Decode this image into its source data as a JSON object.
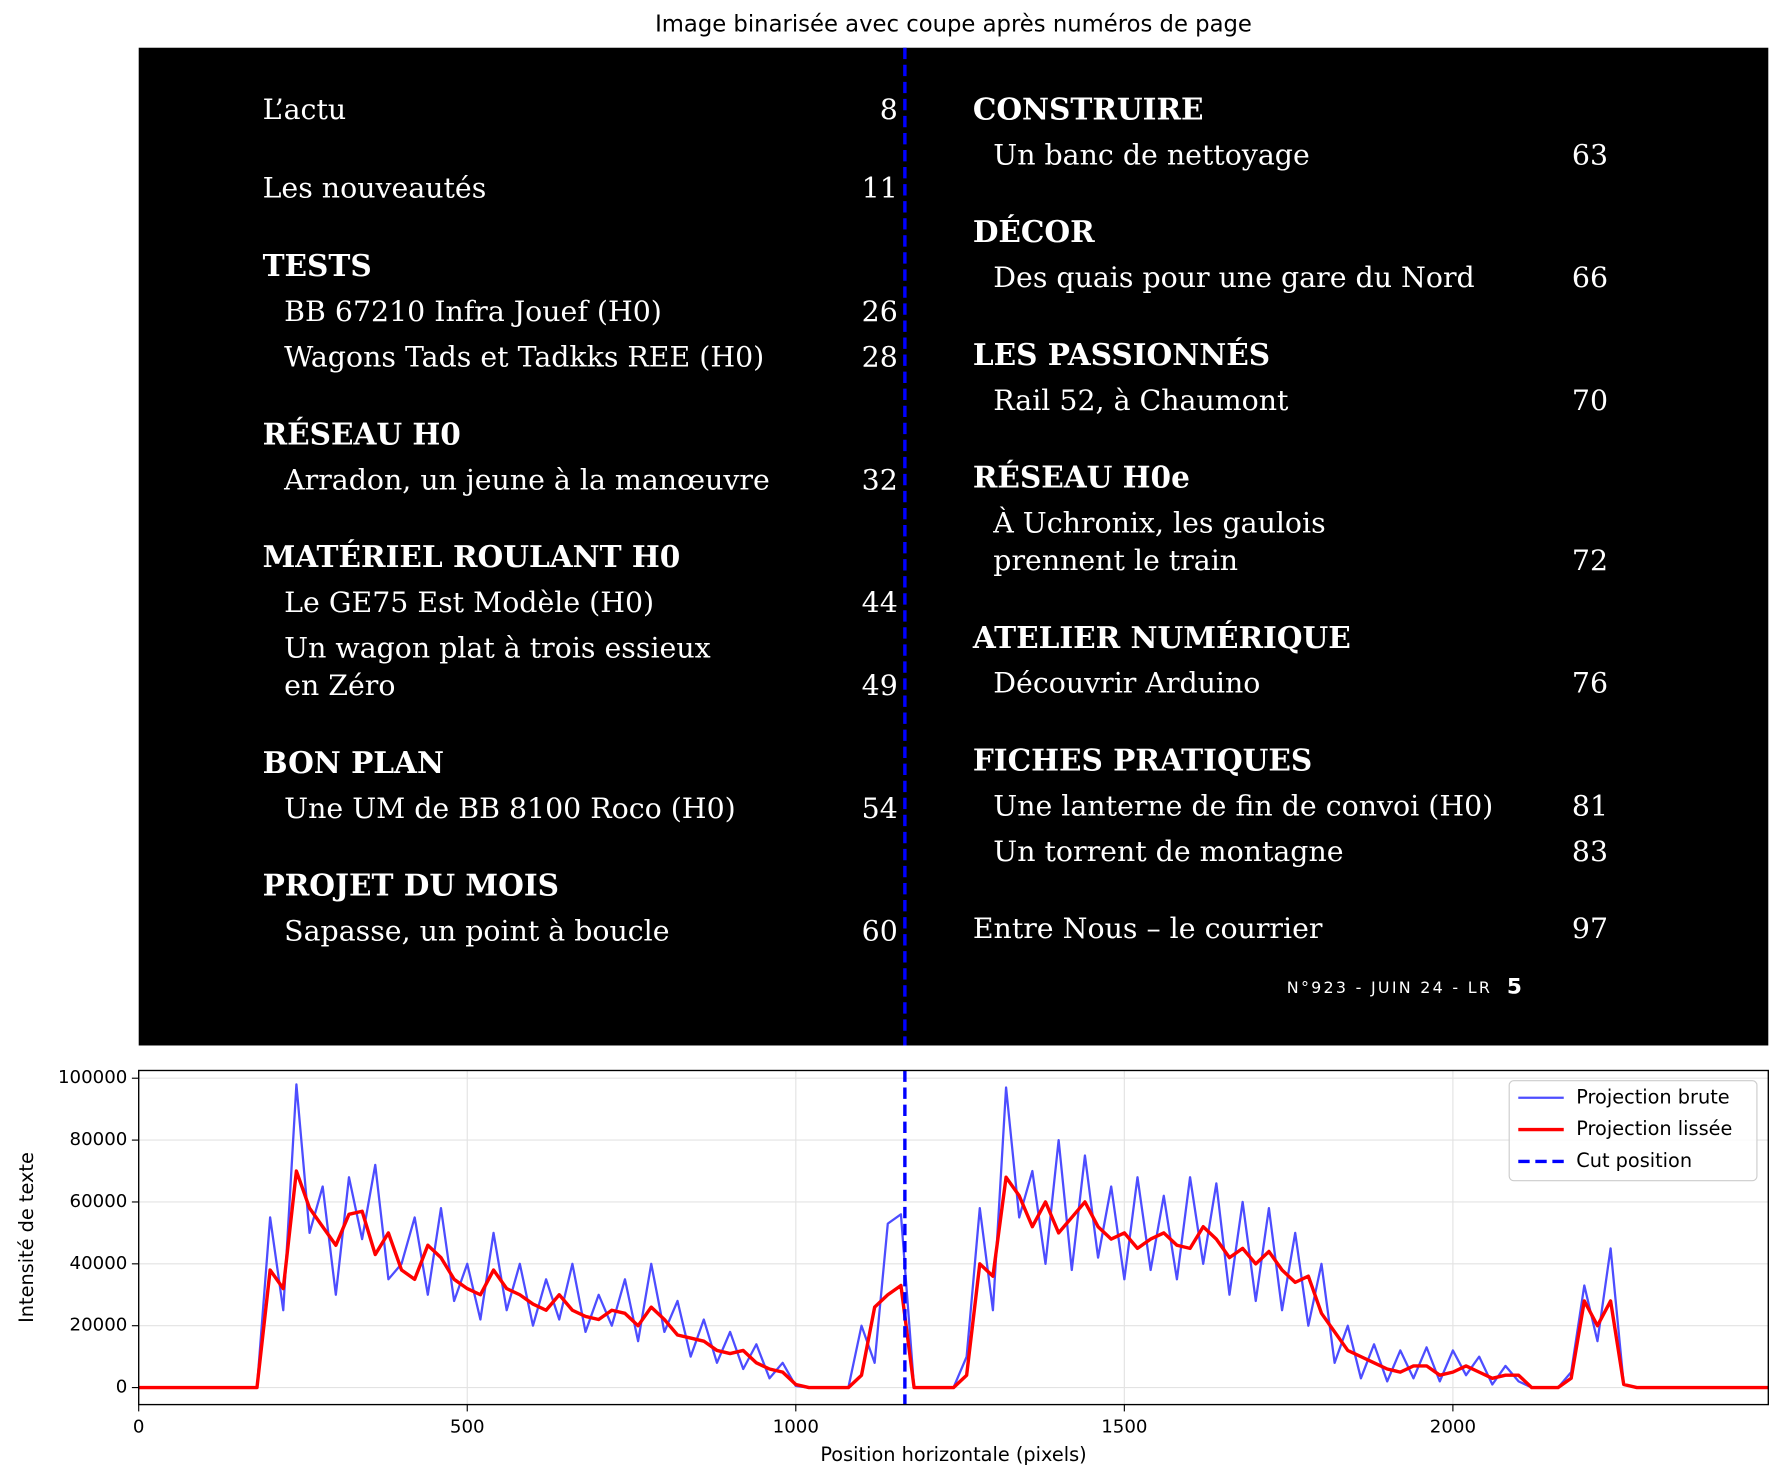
{
  "chart_data": [
    {
      "type": "image",
      "title": "Image binarisée avec coupe après numéros de page",
      "columns": [
        [
          {
            "entry": "L’actu",
            "page": 8
          },
          {
            "entry": "Les nouveautés",
            "page": 11
          },
          {
            "heading": "TESTS",
            "items": [
              {
                "lines": [
                  "BB 67210 Infra Jouef (H0)"
                ],
                "page": 26
              },
              {
                "lines": [
                  "Wagons Tads et Tadkks REE (H0)"
                ],
                "page": 28
              }
            ]
          },
          {
            "heading": "RÉSEAU H0",
            "items": [
              {
                "lines": [
                  "Arradon, un jeune à la manœuvre"
                ],
                "page": 32
              }
            ]
          },
          {
            "heading": "MATÉRIEL ROULANT H0",
            "items": [
              {
                "lines": [
                  "Le GE75 Est Modèle (H0)"
                ],
                "page": 44
              },
              {
                "lines": [
                  "Un wagon plat à trois essieux",
                  "en Zéro"
                ],
                "page": 49
              }
            ]
          },
          {
            "heading": "BON PLAN",
            "items": [
              {
                "lines": [
                  "Une UM de BB 8100 Roco (H0)"
                ],
                "page": 54
              }
            ]
          },
          {
            "heading": "PROJET DU MOIS",
            "items": [
              {
                "lines": [
                  "Sapasse, un point à boucle"
                ],
                "page": 60
              }
            ]
          }
        ],
        [
          {
            "heading": "CONSTRUIRE",
            "items": [
              {
                "lines": [
                  "Un banc de nettoyage"
                ],
                "page": 63
              }
            ]
          },
          {
            "heading": "DÉCOR",
            "items": [
              {
                "lines": [
                  "Des quais pour une gare du Nord"
                ],
                "page": 66
              }
            ]
          },
          {
            "heading": "LES PASSIONNÉS",
            "items": [
              {
                "lines": [
                  "Rail 52, à Chaumont"
                ],
                "page": 70
              }
            ]
          },
          {
            "heading": "RÉSEAU H0e",
            "items": [
              {
                "lines": [
                  "À Uchronix, les gaulois",
                  "prennent le train"
                ],
                "page": 72
              }
            ]
          },
          {
            "heading": "ATELIER NUMÉRIQUE",
            "items": [
              {
                "lines": [
                  "Découvrir Arduino"
                ],
                "page": 76
              }
            ]
          },
          {
            "heading": "FICHES PRATIQUES",
            "items": [
              {
                "lines": [
                  "Une lanterne de fin de convoi (H0)"
                ],
                "page": 81
              },
              {
                "lines": [
                  "Un torrent de montagne"
                ],
                "page": 83
              }
            ]
          },
          {
            "entry": "Entre Nous – le courrier",
            "page": 97
          }
        ]
      ],
      "footer": {
        "issue": "N°923 - JUIN 24 - LR",
        "page": 5
      }
    },
    {
      "type": "line",
      "xlabel": "Position horizontale (pixels)",
      "ylabel": "Intensité de texte",
      "x": [
        0,
        20,
        40,
        60,
        80,
        100,
        120,
        140,
        160,
        180,
        200,
        220,
        240,
        260,
        280,
        300,
        320,
        340,
        360,
        380,
        400,
        420,
        440,
        460,
        480,
        500,
        520,
        540,
        560,
        580,
        600,
        620,
        640,
        660,
        680,
        700,
        720,
        740,
        760,
        780,
        800,
        820,
        840,
        860,
        880,
        900,
        920,
        940,
        960,
        980,
        1000,
        1020,
        1040,
        1060,
        1080,
        1100,
        1120,
        1140,
        1160,
        1180,
        1200,
        1220,
        1240,
        1260,
        1280,
        1300,
        1320,
        1340,
        1360,
        1380,
        1400,
        1420,
        1440,
        1460,
        1480,
        1500,
        1520,
        1540,
        1560,
        1580,
        1600,
        1620,
        1640,
        1660,
        1680,
        1700,
        1720,
        1740,
        1760,
        1780,
        1800,
        1820,
        1840,
        1860,
        1880,
        1900,
        1920,
        1940,
        1960,
        1980,
        2000,
        2020,
        2040,
        2060,
        2080,
        2100,
        2120,
        2140,
        2160,
        2180,
        2200,
        2220,
        2240,
        2260,
        2280,
        2300,
        2320,
        2340,
        2360,
        2380,
        2400,
        2420,
        2440,
        2460,
        2480
      ],
      "series": [
        {
          "name": "Projection brute",
          "color": "#4d4dff",
          "width": 2,
          "values": [
            0,
            0,
            0,
            0,
            0,
            0,
            0,
            0,
            0,
            0,
            55000,
            25000,
            98000,
            50000,
            65000,
            30000,
            68000,
            48000,
            72000,
            35000,
            40000,
            55000,
            30000,
            58000,
            28000,
            40000,
            22000,
            50000,
            25000,
            40000,
            20000,
            35000,
            22000,
            40000,
            18000,
            30000,
            20000,
            35000,
            15000,
            40000,
            18000,
            28000,
            10000,
            22000,
            8000,
            18000,
            6000,
            14000,
            3000,
            8000,
            500,
            0,
            0,
            0,
            0,
            20000,
            8000,
            53000,
            56000,
            0,
            0,
            0,
            0,
            10000,
            58000,
            25000,
            97000,
            55000,
            70000,
            40000,
            80000,
            38000,
            75000,
            42000,
            65000,
            35000,
            68000,
            38000,
            62000,
            35000,
            68000,
            40000,
            66000,
            30000,
            60000,
            28000,
            58000,
            25000,
            50000,
            20000,
            40000,
            8000,
            20000,
            3000,
            14000,
            2000,
            12000,
            3000,
            13000,
            2000,
            12000,
            4000,
            10000,
            1000,
            7000,
            2000,
            0,
            0,
            0,
            5000,
            33000,
            15000,
            45000,
            1000,
            0,
            0,
            0,
            0,
            0,
            0,
            0,
            0,
            0,
            0,
            0
          ]
        },
        {
          "name": "Projection lissée",
          "color": "#ff0000",
          "width": 3,
          "values": [
            0,
            0,
            0,
            0,
            0,
            0,
            0,
            0,
            0,
            0,
            38000,
            32000,
            70000,
            58000,
            52000,
            46000,
            56000,
            57000,
            43000,
            50000,
            38000,
            35000,
            46000,
            42000,
            35000,
            32000,
            30000,
            38000,
            32000,
            30000,
            27000,
            25000,
            30000,
            25000,
            23000,
            22000,
            25000,
            24000,
            20000,
            26000,
            22000,
            17000,
            16000,
            15000,
            12000,
            11000,
            12000,
            8000,
            6000,
            5000,
            1000,
            0,
            0,
            0,
            0,
            4000,
            26000,
            30000,
            33000,
            0,
            0,
            0,
            0,
            4000,
            40000,
            36000,
            68000,
            62000,
            52000,
            60000,
            50000,
            55000,
            60000,
            52000,
            48000,
            50000,
            45000,
            48000,
            50000,
            46000,
            45000,
            52000,
            48000,
            42000,
            45000,
            40000,
            44000,
            38000,
            34000,
            36000,
            24000,
            18000,
            12000,
            10000,
            8000,
            6000,
            5000,
            7000,
            7000,
            4000,
            5000,
            7000,
            5000,
            3000,
            4000,
            4000,
            0,
            0,
            0,
            3000,
            28000,
            20000,
            28000,
            1000,
            0,
            0,
            0,
            0,
            0,
            0,
            0,
            0,
            0,
            0,
            0
          ]
        }
      ],
      "vline": {
        "name": "Cut position",
        "x": 1166,
        "color": "#0000ff"
      },
      "xlim": [
        0,
        2480
      ],
      "ylim": [
        -5500,
        102500
      ],
      "xticks": [
        0,
        500,
        1000,
        1500,
        2000
      ],
      "yticks": [
        0,
        20000,
        40000,
        60000,
        80000,
        100000
      ],
      "grid": true,
      "legend": "upper right"
    }
  ]
}
